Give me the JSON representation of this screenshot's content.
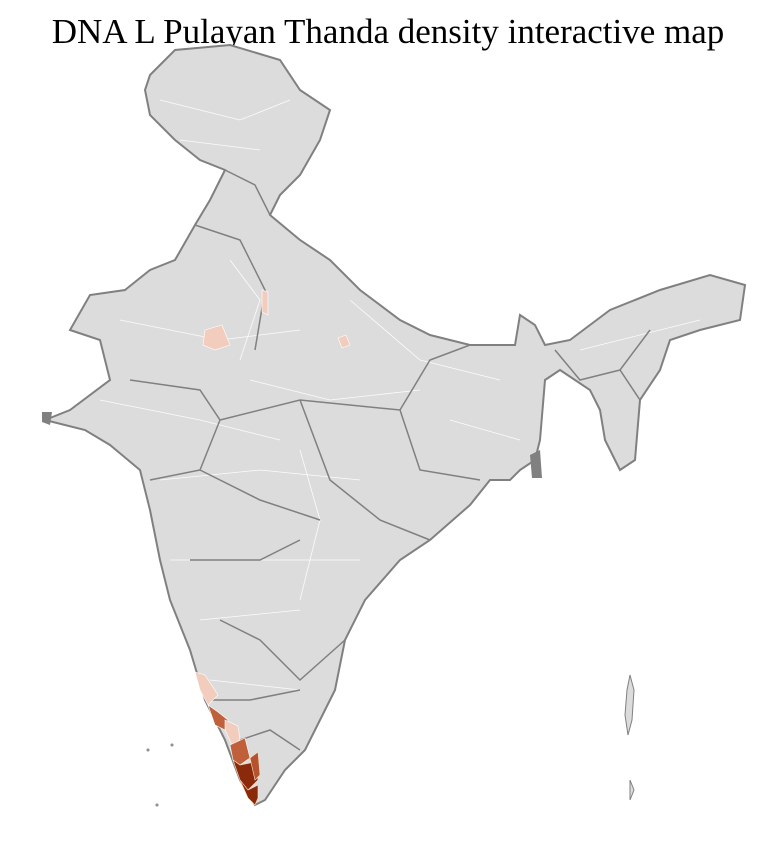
{
  "title": "DNA L Pulayan Thanda density interactive map",
  "colors": {
    "land": "#dcdcdc",
    "state_border": "#808080",
    "district_border": "#ffffff",
    "density_low": "#f2cdbd",
    "density_mid": "#c0603b",
    "density_high": "#8b2a0a"
  }
}
